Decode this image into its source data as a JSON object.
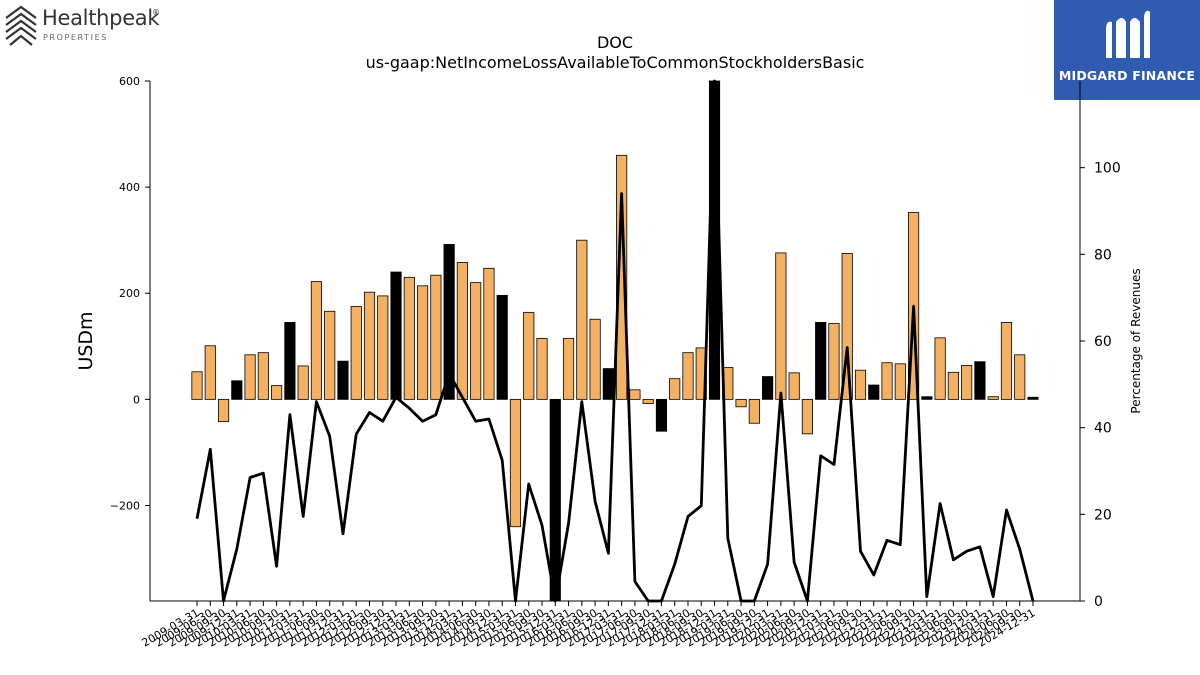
{
  "logos": {
    "left_brand": "Healthpeak",
    "left_registered": "®",
    "left_sub": "PROPERTIES",
    "right_brand": "MIDGARD FINANCE",
    "right_bg": "#2f5bb0"
  },
  "chart_data": {
    "type": "bar",
    "title": "DOC",
    "subtitle": "us-gaap:NetIncomeLossAvailableToCommonStockholdersBasic",
    "ylabel": "USDm",
    "y2label": "Percentage of Revenues",
    "ylim": [
      -380,
      600
    ],
    "y2lim": [
      0,
      120
    ],
    "yticks": [
      -200,
      0,
      200,
      400,
      600
    ],
    "y2ticks": [
      0,
      20,
      40,
      60,
      80,
      100
    ],
    "grid": false,
    "colors": {
      "quarter_bar": "#f5b163",
      "annual_bar": "#000000",
      "line": "#000000"
    },
    "categories": [
      "2009-03-31",
      "2009-06-30",
      "2009-09-30",
      "2009-12-31",
      "2010-03-31",
      "2010-06-30",
      "2010-09-30",
      "2010-12-31",
      "2011-03-31",
      "2011-06-30",
      "2011-09-30",
      "2011-12-31",
      "2012-03-31",
      "2012-06-30",
      "2012-09-30",
      "2012-12-31",
      "2013-03-31",
      "2013-06-30",
      "2013-09-30",
      "2013-12-31",
      "2014-03-31",
      "2014-06-30",
      "2014-09-30",
      "2014-12-31",
      "2015-03-31",
      "2015-06-30",
      "2015-09-30",
      "2015-12-31",
      "2016-03-31",
      "2016-06-30",
      "2016-09-30",
      "2016-12-31",
      "2017-03-31",
      "2017-06-30",
      "2017-09-30",
      "2017-12-31",
      "2018-03-31",
      "2018-06-30",
      "2018-09-30",
      "2018-12-31",
      "2019-03-31",
      "2019-06-30",
      "2019-09-30",
      "2019-12-31",
      "2020-03-31",
      "2020-06-30",
      "2020-09-30",
      "2020-12-31",
      "2021-03-31",
      "2021-06-30",
      "2021-09-30",
      "2021-12-31",
      "2022-03-31",
      "2022-06-30",
      "2022-09-30",
      "2022-12-31",
      "2023-03-31",
      "2023-06-30",
      "2023-09-30",
      "2023-12-31",
      "2024-03-31",
      "2024-06-30",
      "2024-09-30",
      "2024-12-31"
    ],
    "bar_values": [
      52,
      101,
      -42,
      35,
      84,
      88,
      26,
      145,
      63,
      222,
      166,
      72,
      175,
      202,
      195,
      240,
      230,
      214,
      234,
      292,
      258,
      220,
      247,
      196,
      -240,
      164,
      115,
      -380,
      115,
      300,
      151,
      58,
      460,
      18,
      -8,
      -60,
      39,
      88,
      97,
      600,
      60,
      -14,
      -45,
      43,
      276,
      50,
      -65,
      145,
      143,
      275,
      55,
      27,
      69,
      67,
      352,
      5,
      116,
      51,
      64,
      71,
      5,
      145,
      84,
      4
    ],
    "annual": [
      false,
      false,
      false,
      true,
      false,
      false,
      false,
      true,
      false,
      false,
      false,
      true,
      false,
      false,
      false,
      true,
      false,
      false,
      false,
      true,
      false,
      false,
      false,
      true,
      false,
      false,
      false,
      true,
      false,
      false,
      false,
      true,
      false,
      false,
      false,
      true,
      false,
      false,
      false,
      true,
      false,
      false,
      false,
      true,
      false,
      false,
      false,
      true,
      false,
      false,
      false,
      true,
      false,
      false,
      false,
      true,
      false,
      false,
      false,
      true,
      false,
      false,
      false,
      true
    ],
    "line_values": [
      19,
      35,
      0,
      12,
      28.5,
      29.5,
      8,
      43,
      19.5,
      46,
      38,
      15.5,
      38.5,
      43.5,
      41.5,
      47,
      44.5,
      41.5,
      43,
      52.5,
      47,
      41.5,
      42,
      32.5,
      0,
      27,
      17.5,
      0,
      18,
      46,
      23,
      11,
      94,
      4.5,
      0,
      0,
      8.5,
      19.5,
      22,
      120,
      14.5,
      0,
      0,
      8.5,
      48,
      9,
      0,
      33.5,
      31.5,
      58.5,
      11.5,
      6,
      14,
      13,
      68,
      1,
      22.5,
      9.5,
      11.5,
      12.5,
      1,
      21,
      12,
      0
    ]
  }
}
